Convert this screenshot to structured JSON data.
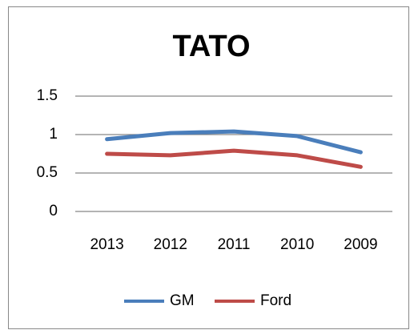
{
  "chart_data": {
    "type": "line",
    "title": "TATO",
    "categories": [
      "2013",
      "2012",
      "2011",
      "2010",
      "2009"
    ],
    "series": [
      {
        "name": "GM",
        "color": "#4a7ebb",
        "values": [
          0.94,
          1.02,
          1.04,
          0.98,
          0.77
        ]
      },
      {
        "name": "Ford",
        "color": "#be4b48",
        "values": [
          0.75,
          0.73,
          0.79,
          0.73,
          0.58
        ]
      }
    ],
    "ylim": [
      0,
      1.5
    ],
    "yticks": [
      0,
      0.5,
      1,
      1.5
    ],
    "grid": true,
    "legend": "bottom"
  }
}
